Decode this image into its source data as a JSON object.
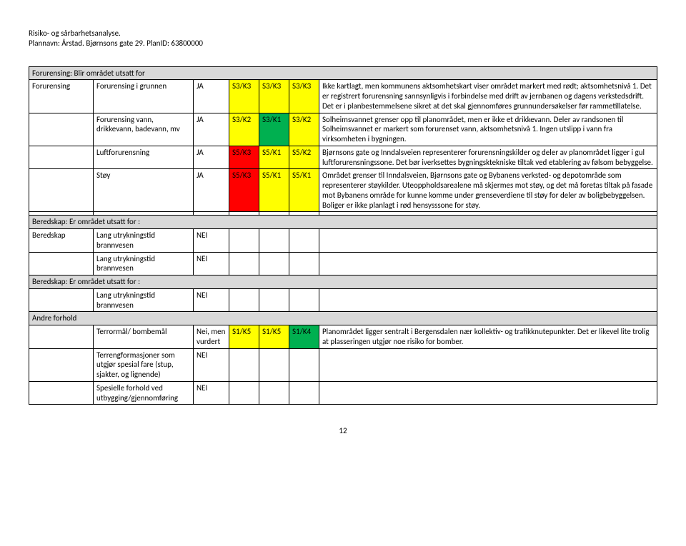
{
  "header": {
    "line1": "Risiko- og sårbarhetsanalyse.",
    "line2": "Plannavn: Årstad. Bjørnsons gate 29. PlanID: 63800000"
  },
  "colors": {
    "yellow": "#ffff00",
    "green": "#00b050",
    "red": "#ff0000",
    "section_bg": "#d9d9d9"
  },
  "sections": [
    {
      "title": "Forurensing: Blir området utsatt for",
      "rows": [
        {
          "category": "Forurensing",
          "sub": "Forurensing i grunnen",
          "ja": "JA",
          "c1": {
            "text": "S3/K3",
            "color": "yellow"
          },
          "c2": {
            "text": "S3/K3",
            "color": "yellow"
          },
          "c3": {
            "text": "S3/K3",
            "color": "yellow"
          },
          "desc": "Ikke kartlagt, men kommunens aktsomhetskart viser området markert med rødt; aktsomhetsnivå 1. Det er registrert forurensning sannsynligvis i forbindelse med drift av jernbanen og dagens verkstedsdrift. Det er i planbestemmelsene sikret at det skal gjennomføres grunnundersøkelser før rammetillatelse."
        },
        {
          "category": "",
          "sub": "Forurensing vann, drikkevann, badevann, mv",
          "ja": "JA",
          "c1": {
            "text": "S3/K2",
            "color": "yellow"
          },
          "c2": {
            "text": "S3/K1",
            "color": "green"
          },
          "c3": {
            "text": "S3/K2",
            "color": "yellow"
          },
          "desc": "Solheimsvannet grenser opp til planområdet, men er ikke et drikkevann. Deler av randsonen til Solheimsvannet er markert som forurenset vann, aktsomhetsnivå 1. Ingen utslipp i vann fra virksomheten i bygningen."
        },
        {
          "category": "",
          "sub": "Luftforurensning",
          "ja": "JA",
          "c1": {
            "text": "S5/K3",
            "color": "red"
          },
          "c2": {
            "text": "S5/K1",
            "color": "yellow"
          },
          "c3": {
            "text": "S5/K2",
            "color": "yellow"
          },
          "desc": "Bjørnsons gate og Inndalsveien representerer forurensningskilder og deler av planområdet ligger i gul luftforurensningssone. Det bør iverksettes bygningsktekniske tiltak ved etablering av følsom bebyggelse."
        },
        {
          "category": "",
          "sub": "Støy",
          "ja": "JA",
          "c1": {
            "text": "S5/K3",
            "color": "red"
          },
          "c2": {
            "text": "S5/K1",
            "color": "yellow"
          },
          "c3": {
            "text": "S5/K1",
            "color": "yellow"
          },
          "desc": "Området grenser til Inndalsveien, Bjørnsons gate og Bybanens verksted- og depotområde som representerer støykilder. Uteoppholdsarealene må skjermes mot støy, og det må foretas tiltak på fasade mot Bybanens område for kunne komme under grenseverdiene til støy for deler av boligbebyggelsen. Boliger er ikke planlagt i rød hensysssone for støy."
        }
      ]
    },
    {
      "title": "Beredskap: Er området utsatt for :",
      "rows": [
        {
          "category": "Beredskap",
          "sub": "Lang utrykningstid brannvesen",
          "ja": "NEI",
          "c1": null,
          "c2": null,
          "c3": null,
          "desc": ""
        },
        {
          "category": "",
          "sub": "Lang utrykningstid brannvesen",
          "ja": "NEI",
          "c1": null,
          "c2": null,
          "c3": null,
          "desc": ""
        }
      ]
    },
    {
      "title": "Beredskap: Er området utsatt for :",
      "rows": [
        {
          "category": "",
          "sub": "Lang utrykningstid brannvesen",
          "ja": "NEI",
          "c1": null,
          "c2": null,
          "c3": null,
          "desc": ""
        }
      ]
    },
    {
      "title": null,
      "category_row": "Andre forhold",
      "rows": [
        {
          "category": "",
          "sub": "Terrormål/ bombemål",
          "ja": "Nei, men vurdert",
          "c1": {
            "text": "S1/K5",
            "color": "yellow"
          },
          "c2": {
            "text": "S1/K5",
            "color": "yellow"
          },
          "c3": {
            "text": "S1/K4",
            "color": "green"
          },
          "desc": "Planområdet ligger sentralt i Bergensdalen nær kollektiv- og trafikknutepunkter. Det er likevel lite trolig at plasseringen utgjør noe risiko for bomber."
        },
        {
          "category": "",
          "sub": "Terrengformasjoner som utgjør spesial fare (stup, sjakter, og lignende)",
          "ja": "NEI",
          "c1": null,
          "c2": null,
          "c3": null,
          "desc": ""
        },
        {
          "category": "",
          "sub": "Spesielle forhold ved utbygging/gjennomføring",
          "ja": "NEI",
          "c1": null,
          "c2": null,
          "c3": null,
          "desc": ""
        }
      ]
    }
  ],
  "page_number": "12"
}
